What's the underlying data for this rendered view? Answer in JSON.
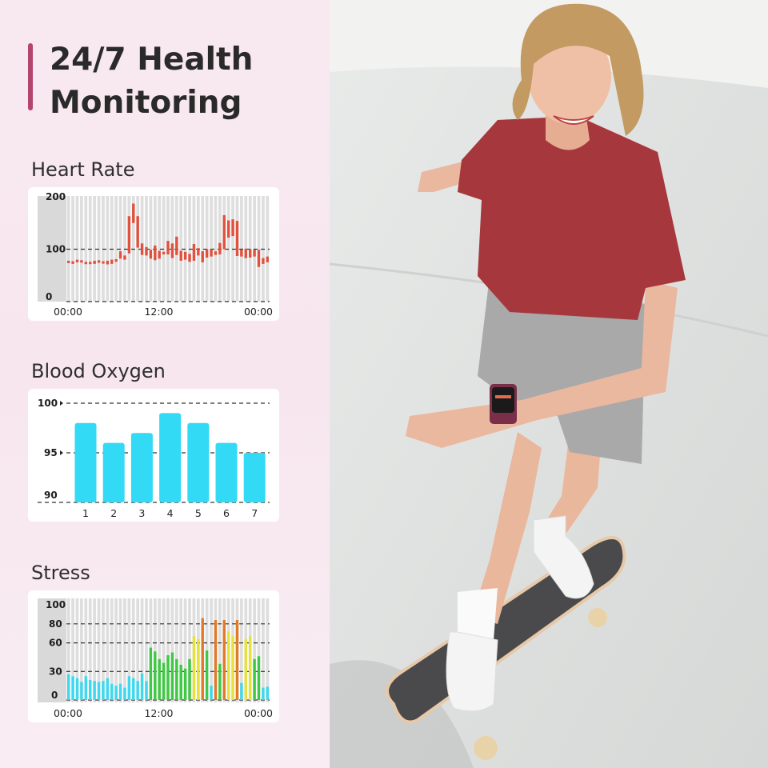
{
  "header": {
    "title_line1": "24/7 Health",
    "title_line2": "Monitoring",
    "accent_color": "#b3456e"
  },
  "colors": {
    "heart": "#e0523f",
    "oxygen": "#33daf5",
    "stress_relaxed": "#3fd8ee",
    "stress_normal": "#3ec843",
    "stress_medium": "#e6e23c",
    "stress_high": "#e07a2a"
  },
  "photo": {
    "description_icon": "girl-skateboarding-with-smartwatch-photo"
  },
  "chart_data": [
    {
      "id": "heart",
      "label": "Heart Rate",
      "type": "bar",
      "subtype": "range",
      "ylim": [
        0,
        200
      ],
      "yticks": [
        "200",
        "100",
        "0"
      ],
      "xticks": [
        "00:00",
        "12:00",
        "00:00"
      ],
      "gridlines": [
        100,
        0
      ],
      "ranges": [
        [
          74,
          78
        ],
        [
          72,
          77
        ],
        [
          75,
          80
        ],
        [
          75,
          79
        ],
        [
          73,
          76
        ],
        [
          73,
          76
        ],
        [
          72,
          78
        ],
        [
          74,
          79
        ],
        [
          73,
          77
        ],
        [
          71,
          78
        ],
        [
          72,
          80
        ],
        [
          76,
          81
        ],
        [
          82,
          96
        ],
        [
          80,
          88
        ],
        [
          92,
          163
        ],
        [
          150,
          187
        ],
        [
          103,
          163
        ],
        [
          89,
          111
        ],
        [
          88,
          104
        ],
        [
          82,
          99
        ],
        [
          79,
          107
        ],
        [
          82,
          97
        ],
        [
          90,
          95
        ],
        [
          90,
          116
        ],
        [
          83,
          111
        ],
        [
          89,
          124
        ],
        [
          78,
          97
        ],
        [
          80,
          95
        ],
        [
          76,
          91
        ],
        [
          78,
          110
        ],
        [
          88,
          102
        ],
        [
          75,
          96
        ],
        [
          84,
          100
        ],
        [
          86,
          100
        ],
        [
          89,
          96
        ],
        [
          90,
          112
        ],
        [
          100,
          165
        ],
        [
          122,
          155
        ],
        [
          125,
          157
        ],
        [
          87,
          154
        ],
        [
          86,
          99
        ],
        [
          83,
          101
        ],
        [
          84,
          100
        ],
        [
          86,
          99
        ],
        [
          66,
          99
        ],
        [
          72,
          83
        ],
        [
          75,
          86
        ]
      ]
    },
    {
      "id": "oxygen",
      "label": "Blood Oxygen",
      "type": "bar",
      "ylim": [
        90,
        100
      ],
      "yticks": [
        "100",
        "95",
        "90"
      ],
      "categories": [
        "1",
        "2",
        "3",
        "4",
        "5",
        "6",
        "7"
      ],
      "values": [
        98,
        96,
        97,
        99,
        98,
        96,
        95
      ]
    },
    {
      "id": "stress",
      "label": "Stress",
      "type": "bar",
      "ylim": [
        0,
        100
      ],
      "yticks": [
        "100",
        "80",
        "60",
        "30",
        "0"
      ],
      "xticks": [
        "00:00",
        "12:00",
        "00:00"
      ],
      "gridlines": [
        80,
        60,
        30,
        0
      ],
      "values": [
        27,
        25,
        23,
        19,
        25,
        21,
        20,
        19,
        20,
        23,
        17,
        15,
        17,
        13,
        25,
        23,
        20,
        28,
        20,
        55,
        51,
        43,
        39,
        47,
        50,
        43,
        37,
        33,
        43,
        67,
        64,
        86,
        52,
        15,
        84,
        38,
        84,
        72,
        67,
        84,
        18,
        64,
        67,
        43,
        46,
        13,
        14
      ],
      "levels": [
        "relaxed",
        "relaxed",
        "relaxed",
        "relaxed",
        "relaxed",
        "relaxed",
        "relaxed",
        "relaxed",
        "relaxed",
        "relaxed",
        "relaxed",
        "relaxed",
        "relaxed",
        "relaxed",
        "relaxed",
        "relaxed",
        "relaxed",
        "relaxed",
        "relaxed",
        "normal",
        "normal",
        "normal",
        "normal",
        "normal",
        "normal",
        "normal",
        "normal",
        "normal",
        "normal",
        "medium",
        "medium",
        "high",
        "normal",
        "relaxed",
        "high",
        "normal",
        "high",
        "medium",
        "medium",
        "high",
        "relaxed",
        "medium",
        "medium",
        "normal",
        "normal",
        "relaxed",
        "relaxed"
      ]
    }
  ]
}
